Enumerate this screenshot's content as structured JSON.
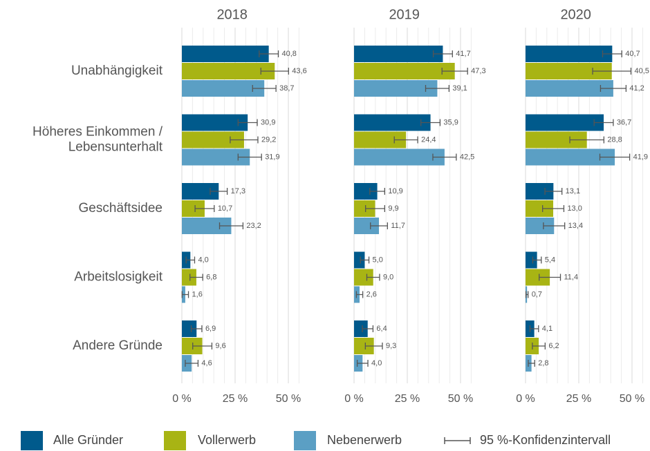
{
  "chart_data": {
    "type": "bar",
    "orientation": "horizontal",
    "categories": [
      "Unabhängigkeit",
      "Höheres Einkommen /\nLebensunterhalt",
      "Geschäftsidee",
      "Arbeitslosigkeit",
      "Andere Gründe"
    ],
    "xlim": [
      0,
      55
    ],
    "xticks": [
      {
        "value": 0,
        "label": "0 %"
      },
      {
        "value": 25,
        "label": "25 %"
      },
      {
        "value": 50,
        "label": "50 %"
      }
    ],
    "xminorticks": [
      5,
      10,
      15,
      20,
      30,
      35,
      40,
      45,
      55
    ],
    "grid": true,
    "legend": "bottom",
    "error_label": "95 %-Konfidenzintervall",
    "series": [
      {
        "name": "Alle Gründer",
        "color": "#005a8c"
      },
      {
        "name": "Vollerwerb",
        "color": "#a8b414"
      },
      {
        "name": "Nebenerwerb",
        "color": "#5b9fc4"
      }
    ],
    "panels": [
      {
        "title": "2018",
        "series": [
          {
            "values": [
              40.8,
              30.9,
              17.3,
              4.0,
              6.9
            ],
            "value_labels": [
              "40,8",
              "30,9",
              "17,3",
              "4,0",
              "6,9"
            ],
            "errors": [
              4.5,
              4.5,
              4,
              2,
              2.5
            ]
          },
          {
            "values": [
              43.6,
              29.2,
              10.7,
              6.8,
              9.6
            ],
            "value_labels": [
              "43,6",
              "29,2",
              "10,7",
              "6,8",
              "9,6"
            ],
            "errors": [
              6.5,
              6.5,
              4.5,
              3,
              4.5
            ]
          },
          {
            "values": [
              38.7,
              31.9,
              23.2,
              1.6,
              4.6
            ],
            "value_labels": [
              "38,7",
              "31,9",
              "23,2",
              "1,6",
              "4,6"
            ],
            "errors": [
              5.5,
              5.5,
              5.5,
              1.5,
              3
            ]
          }
        ]
      },
      {
        "title": "2019",
        "series": [
          {
            "values": [
              41.7,
              35.9,
              10.9,
              5.0,
              6.4
            ],
            "value_labels": [
              "41,7",
              "35,9",
              "10,9",
              "5,0",
              "6,4"
            ],
            "errors": [
              4.5,
              4.5,
              3.5,
              2,
              2.5
            ]
          },
          {
            "values": [
              47.3,
              24.4,
              9.9,
              9.0,
              9.3
            ],
            "value_labels": [
              "47,3",
              "24,4",
              "9,9",
              "9,0",
              "9,3"
            ],
            "errors": [
              6,
              5.5,
              4.5,
              3,
              4
            ]
          },
          {
            "values": [
              39.1,
              42.5,
              11.7,
              2.6,
              4.0
            ],
            "value_labels": [
              "39,1",
              "42,5",
              "11,7",
              "2,6",
              "4,0"
            ],
            "errors": [
              5.5,
              5.5,
              4,
              1.5,
              2.5
            ]
          }
        ]
      },
      {
        "title": "2020",
        "series": [
          {
            "values": [
              40.7,
              36.7,
              13.1,
              5.4,
              4.1
            ],
            "value_labels": [
              "40,7",
              "36,7",
              "13,1",
              "5,4",
              "4,1"
            ],
            "errors": [
              4.5,
              4.5,
              4,
              2,
              2
            ]
          },
          {
            "values": [
              40.5,
              28.8,
              13.0,
              11.4,
              6.2
            ],
            "value_labels": [
              "40,5",
              "28,8",
              "13,0",
              "11,4",
              "6,2"
            ],
            "errors": [
              9,
              8,
              5,
              5,
              3
            ]
          },
          {
            "values": [
              41.2,
              41.9,
              13.4,
              0.7,
              2.8
            ],
            "value_labels": [
              "41,2",
              "41,9",
              "13,4",
              "0,7",
              "2,8"
            ],
            "errors": [
              6,
              7,
              5,
              0.5,
              1.5
            ]
          }
        ]
      }
    ]
  }
}
